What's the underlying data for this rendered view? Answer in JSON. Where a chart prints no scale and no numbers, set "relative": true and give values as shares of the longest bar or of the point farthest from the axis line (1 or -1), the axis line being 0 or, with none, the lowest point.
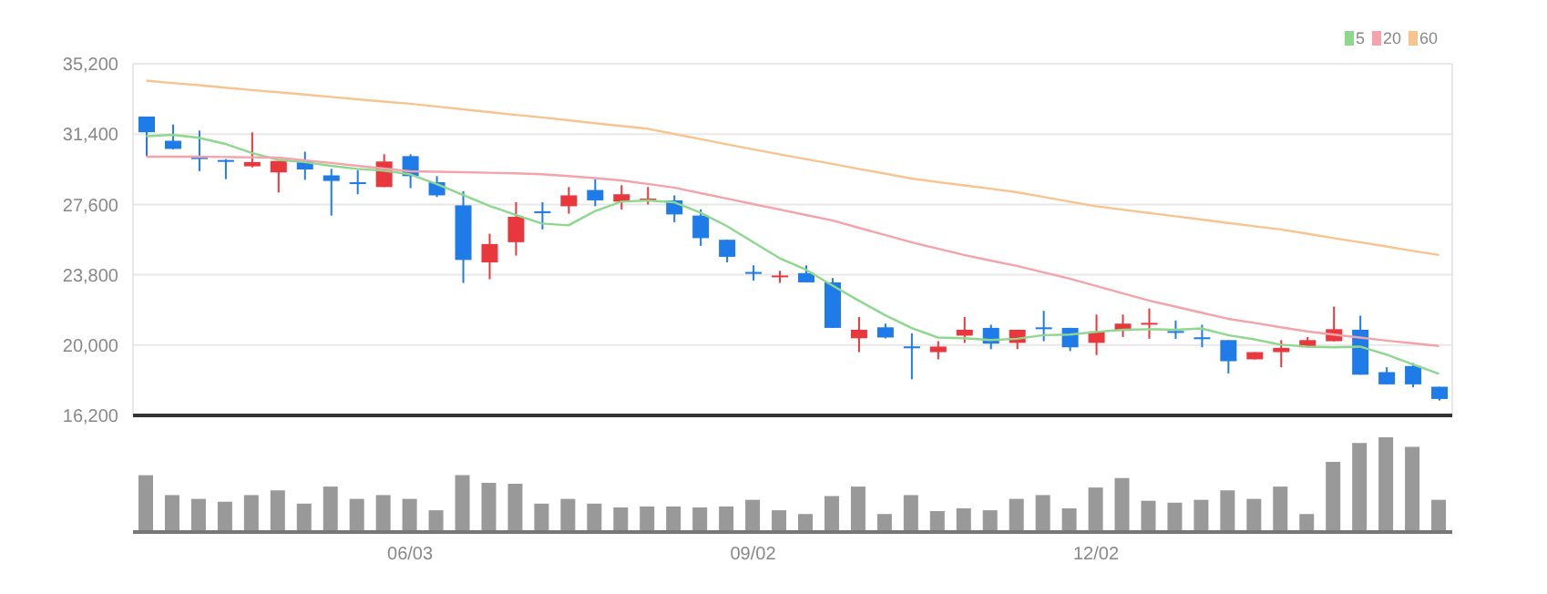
{
  "chart_data": [
    {
      "type": "candlestick",
      "categories": [
        null,
        null,
        null,
        null,
        null,
        null,
        null,
        null,
        null,
        null,
        null,
        null,
        null,
        null,
        null,
        null,
        null,
        null,
        null,
        null,
        null,
        null,
        null,
        null,
        null,
        null,
        null,
        null,
        null,
        null,
        null,
        null,
        null,
        null,
        null,
        null,
        null,
        null,
        null,
        null,
        null,
        null,
        null,
        null,
        null,
        null,
        null,
        null,
        null,
        null
      ],
      "ohlc": [
        [
          32350,
          32350,
          30200,
          31500
        ],
        [
          31040,
          31920,
          30580,
          30600
        ],
        [
          30150,
          31590,
          29400,
          30100
        ],
        [
          30000,
          30050,
          28970,
          29900
        ],
        [
          29660,
          31490,
          29600,
          29890
        ],
        [
          29330,
          29950,
          28240,
          29950
        ],
        [
          29950,
          30450,
          28930,
          29490
        ],
        [
          29170,
          29520,
          27000,
          28870
        ],
        [
          28800,
          29460,
          28150,
          28700
        ],
        [
          28540,
          30310,
          28540,
          29920
        ],
        [
          30210,
          30310,
          28480,
          29130
        ],
        [
          28800,
          29130,
          28000,
          28090
        ],
        [
          27550,
          28310,
          23360,
          24600
        ],
        [
          24470,
          26020,
          23560,
          25460
        ],
        [
          25560,
          27720,
          24840,
          26930
        ],
        [
          27230,
          27720,
          26250,
          27130
        ],
        [
          27500,
          28540,
          27100,
          28090
        ],
        [
          28380,
          28970,
          27500,
          27820
        ],
        [
          27750,
          28640,
          27330,
          28150
        ],
        [
          27860,
          28540,
          27600,
          27920
        ],
        [
          27820,
          28090,
          26640,
          27060
        ],
        [
          27000,
          27330,
          25360,
          25780
        ],
        [
          25690,
          25690,
          24470,
          24770
        ],
        [
          23950,
          24310,
          23490,
          23850
        ],
        [
          23700,
          24010,
          23360,
          23760
        ],
        [
          23890,
          24310,
          23390,
          23390
        ],
        [
          23390,
          23620,
          20930,
          20930
        ],
        [
          20370,
          21520,
          19620,
          20830
        ],
        [
          20960,
          21160,
          20360,
          20410
        ],
        [
          19930,
          20640,
          18150,
          19830
        ],
        [
          19620,
          20210,
          19230,
          19920
        ],
        [
          20510,
          21520,
          20120,
          20830
        ],
        [
          20930,
          21100,
          19780,
          20080
        ],
        [
          20120,
          20830,
          19780,
          20830
        ],
        [
          20960,
          21850,
          20210,
          20860
        ],
        [
          20930,
          20930,
          19680,
          19880
        ],
        [
          20120,
          21650,
          19460,
          20740
        ],
        [
          20770,
          21650,
          20440,
          21160
        ],
        [
          21140,
          21980,
          20340,
          21200
        ],
        [
          20760,
          21330,
          20340,
          20660
        ],
        [
          20420,
          21100,
          19880,
          20320
        ],
        [
          20270,
          20270,
          18470,
          19130
        ],
        [
          19230,
          19620,
          19230,
          19620
        ],
        [
          19620,
          20270,
          18800,
          19850
        ],
        [
          19880,
          20440,
          19880,
          20270
        ],
        [
          20210,
          22080,
          20210,
          20860
        ],
        [
          20830,
          21590,
          18400,
          18400
        ],
        [
          18540,
          18800,
          17880,
          17880
        ],
        [
          18870,
          19030,
          17720,
          17880
        ],
        [
          17750,
          17750,
          17000,
          17090
        ]
      ],
      "colors": [
        "#1f7be8",
        "#1f7be8",
        "#1f7be8",
        "#1f7be8",
        "#e8383d",
        "#e8383d",
        "#1f7be8",
        "#1f7be8",
        "#1f7be8",
        "#e8383d",
        "#1f7be8",
        "#1f7be8",
        "#1f7be8",
        "#e8383d",
        "#e8383d",
        "#1f7be8",
        "#e8383d",
        "#1f7be8",
        "#e8383d",
        "#e8383d",
        "#1f7be8",
        "#1f7be8",
        "#1f7be8",
        "#1f7be8",
        "#e8383d",
        "#1f7be8",
        "#1f7be8",
        "#e8383d",
        "#1f7be8",
        "#1f7be8",
        "#e8383d",
        "#e8383d",
        "#1f7be8",
        "#e8383d",
        "#1f7be8",
        "#1f7be8",
        "#e8383d",
        "#e8383d",
        "#e8383d",
        "#1f7be8",
        "#1f7be8",
        "#1f7be8",
        "#e8383d",
        "#e8383d",
        "#e8383d",
        "#e8383d",
        "#1f7be8",
        "#1f7be8",
        "#1f7be8",
        "#1f7be8"
      ],
      "series": [
        {
          "name": "5",
          "type": "line",
          "color": "#8ed88e",
          "values": [
            31290,
            31360,
            31200,
            30870,
            30380,
            30010,
            29890,
            29690,
            29520,
            29420,
            29230,
            28710,
            28120,
            27530,
            27030,
            26570,
            26470,
            27230,
            27750,
            27820,
            27720,
            27160,
            26440,
            25560,
            24700,
            24080,
            23230,
            22410,
            21620,
            20930,
            20410,
            20370,
            20270,
            20340,
            20540,
            20570,
            20710,
            20830,
            20860,
            20830,
            20900,
            20540,
            20310,
            20020,
            19920,
            19880,
            19920,
            19490,
            18960,
            18440
          ]
        },
        {
          "name": "20",
          "type": "line",
          "color": "#f4a3aa",
          "values": [
            30180,
            30180,
            30180,
            30160,
            30150,
            30130,
            29990,
            29840,
            29690,
            29540,
            29390,
            29370,
            29340,
            29310,
            29280,
            29230,
            29130,
            29020,
            28900,
            28710,
            28510,
            28210,
            27920,
            27620,
            27330,
            27030,
            26740,
            26340,
            25950,
            25560,
            25210,
            24870,
            24570,
            24280,
            23930,
            23590,
            23200,
            22800,
            22410,
            22080,
            21750,
            21420,
            21200,
            20960,
            20740,
            20570,
            20410,
            20240,
            20100,
            19950
          ]
        },
        {
          "name": "60",
          "type": "line",
          "color": "#f8c48e",
          "values": [
            34290,
            34160,
            34040,
            33910,
            33780,
            33660,
            33540,
            33410,
            33280,
            33160,
            33040,
            32890,
            32740,
            32590,
            32440,
            32300,
            32150,
            31990,
            31840,
            31690,
            31410,
            31130,
            30850,
            30580,
            30310,
            30050,
            29790,
            29520,
            29270,
            29000,
            28810,
            28630,
            28450,
            28260,
            28010,
            27750,
            27500,
            27320,
            27140,
            26960,
            26780,
            26600,
            26420,
            26250,
            26020,
            25780,
            25560,
            25330,
            25090,
            24870
          ]
        }
      ],
      "ylim": [
        16200,
        35200
      ],
      "yticks": [
        {
          "value": 16200,
          "label": "16,200"
        },
        {
          "value": 20000,
          "label": "20,000"
        },
        {
          "value": 23800,
          "label": "23,800"
        },
        {
          "value": 27600,
          "label": "27,600"
        },
        {
          "value": 31400,
          "label": "31,400"
        },
        {
          "value": 35200,
          "label": "35,200"
        }
      ],
      "grid": true,
      "legend": "top right",
      "tick_labels": "y",
      "marker": "none",
      "line_style": "solid"
    },
    {
      "type": "bar",
      "relative": true,
      "color": "#999999",
      "tick_labels": "x",
      "categories": [
        null,
        null,
        null,
        null,
        null,
        null,
        null,
        null,
        null,
        null,
        "06/03",
        null,
        null,
        null,
        null,
        null,
        null,
        null,
        null,
        null,
        null,
        null,
        null,
        "09/02",
        null,
        null,
        null,
        null,
        null,
        null,
        null,
        null,
        null,
        null,
        null,
        null,
        "12/02",
        null,
        null,
        null,
        null,
        null,
        null,
        null,
        null,
        null,
        null,
        null,
        null,
        null
      ],
      "values": [
        0.6,
        0.39,
        0.35,
        0.32,
        0.39,
        0.44,
        0.3,
        0.48,
        0.35,
        0.39,
        0.35,
        0.23,
        0.6,
        0.52,
        0.51,
        0.3,
        0.35,
        0.3,
        0.26,
        0.27,
        0.27,
        0.26,
        0.27,
        0.34,
        0.23,
        0.19,
        0.38,
        0.48,
        0.19,
        0.39,
        0.22,
        0.25,
        0.23,
        0.35,
        0.39,
        0.25,
        0.47,
        0.57,
        0.33,
        0.31,
        0.34,
        0.44,
        0.35,
        0.48,
        0.19,
        0.74,
        0.94,
        1,
        0.9,
        0.34
      ]
    }
  ]
}
